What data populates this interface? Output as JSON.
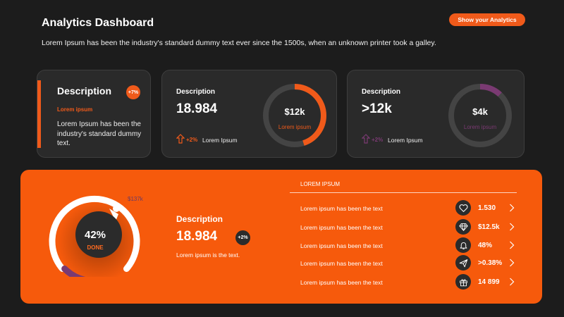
{
  "header": {
    "title": "Analytics Dashboard",
    "subtitle": "Lorem Ipsum has been the industry's standard dummy text ever since the 1500s, when an unknown printer took a galley.",
    "cta_label": "Show your Analytics"
  },
  "card_description": {
    "title": "Description",
    "badge": "+7%",
    "lorem": "Lorem ipsum",
    "body": "Lorem Ipsum has been the industry's standard dummy text."
  },
  "stat_cards": [
    {
      "label": "Description",
      "value": "18.984",
      "delta": "+2%",
      "caption": "Lorem Ipsum",
      "ring_value": "$12k",
      "ring_caption": "Lorem ipsum",
      "ring_fill": 0.45,
      "accent": "#f05a1a",
      "arrow_icon": "arrow-up-icon"
    },
    {
      "label": "Description",
      "value": ">12k",
      "delta": "+2%",
      "caption": "Lorem Ipsum",
      "ring_value": "$4k",
      "ring_caption": "Lorem ipsum",
      "ring_fill": 0.12,
      "accent": "#7a3a72",
      "arrow_icon": "arrow-up-icon"
    }
  ],
  "featured": {
    "gauge_percent": "42%",
    "gauge_label": "DONE",
    "gauge_fill": 0.42,
    "gauge_tag": "$137k",
    "label": "Description",
    "value": "18.984",
    "badge": "+2%",
    "caption": "Lorem ipsum is the text.",
    "list_header": "LOREM IPSUM",
    "rows": [
      {
        "text": "Lorem ipsum has been the text",
        "icon": "heart-icon",
        "value": "1.530"
      },
      {
        "text": "Lorem ipsum has been the text",
        "icon": "diamond-icon",
        "value": "$12.5k"
      },
      {
        "text": "Lorem ipsum has been the text",
        "icon": "bell-icon",
        "value": "48%"
      },
      {
        "text": "Lorem ipsum has been the text",
        "icon": "paper-plane-icon",
        "value": ">0.38%"
      },
      {
        "text": "Lorem ipsum has been the text",
        "icon": "gift-icon",
        "value": "14 899"
      }
    ]
  },
  "colors": {
    "accent": "#f05a1a",
    "purple": "#7a3a72",
    "background": "#1c1c1c",
    "card": "#2a2a2a",
    "panel": "#f65a0c"
  }
}
